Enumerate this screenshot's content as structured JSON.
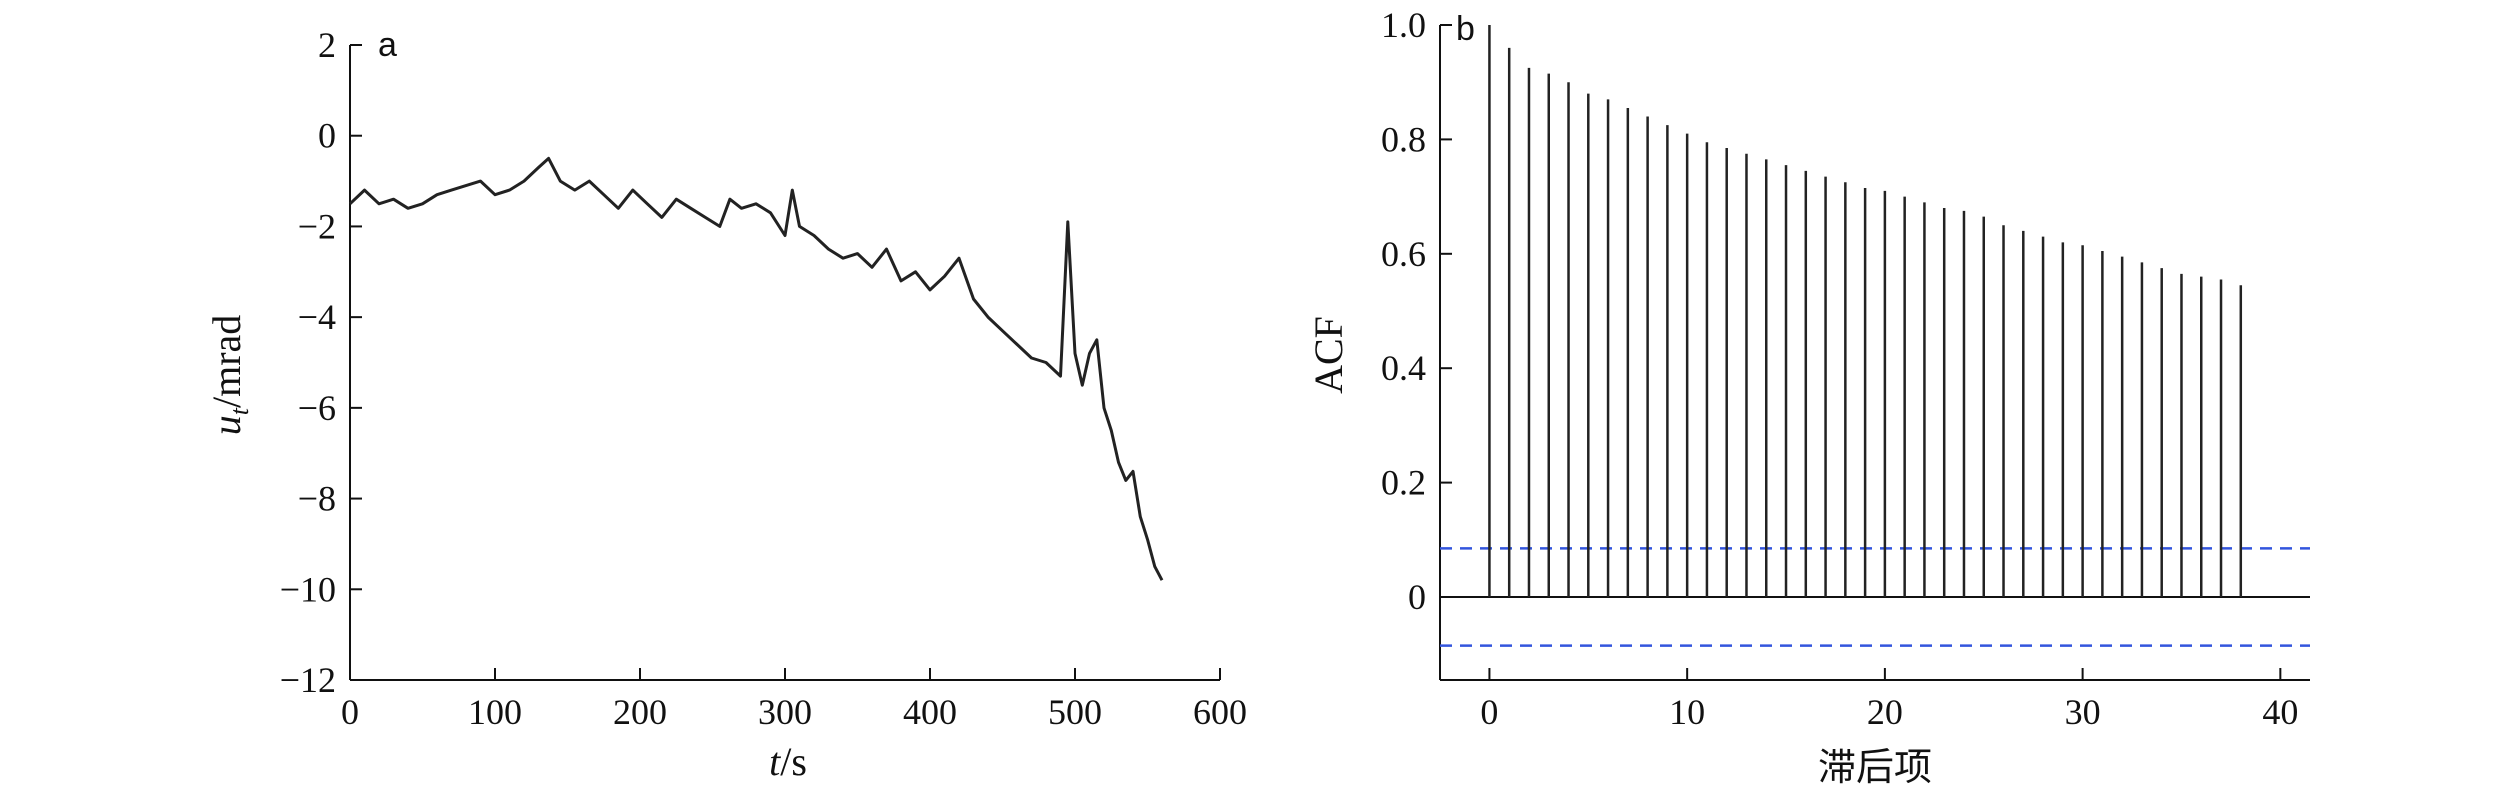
{
  "chart_data": [
    {
      "type": "line",
      "panel_label": "a",
      "xlabel": "t/s",
      "ylabel": "u_t/mrad",
      "xlim": [
        0,
        600
      ],
      "ylim": [
        -12,
        2
      ],
      "xticks": [
        0,
        100,
        200,
        300,
        400,
        500,
        600
      ],
      "yticks": [
        2,
        0,
        -2,
        -4,
        -6,
        -8,
        -10,
        -12
      ],
      "grid": false,
      "line_color": "#222222",
      "series": [
        {
          "x": [
            0,
            10,
            20,
            30,
            40,
            50,
            60,
            70,
            80,
            90,
            100,
            110,
            120,
            130,
            137,
            145,
            155,
            165,
            175,
            185,
            195,
            205,
            215,
            225,
            235,
            245,
            255,
            262,
            270,
            280,
            290,
            300,
            305,
            310,
            320,
            330,
            340,
            350,
            360,
            370,
            380,
            390,
            400,
            410,
            420,
            430,
            440,
            450,
            460,
            470,
            480,
            490,
            495,
            500,
            505,
            510,
            515,
            520,
            525,
            530,
            535,
            540,
            545,
            550,
            555,
            560
          ],
          "y": [
            -1.5,
            -1.2,
            -1.5,
            -1.4,
            -1.6,
            -1.5,
            -1.3,
            -1.2,
            -1.1,
            -1.0,
            -1.3,
            -1.2,
            -1.0,
            -0.7,
            -0.5,
            -1.0,
            -1.2,
            -1.0,
            -1.3,
            -1.6,
            -1.2,
            -1.5,
            -1.8,
            -1.4,
            -1.6,
            -1.8,
            -2.0,
            -1.4,
            -1.6,
            -1.5,
            -1.7,
            -2.2,
            -1.2,
            -2.0,
            -2.2,
            -2.5,
            -2.7,
            -2.6,
            -2.9,
            -2.5,
            -3.2,
            -3.0,
            -3.4,
            -3.1,
            -2.7,
            -3.6,
            -4.0,
            -4.3,
            -4.6,
            -4.9,
            -5.0,
            -5.3,
            -1.9,
            -4.8,
            -5.5,
            -4.8,
            -4.5,
            -6.0,
            -6.5,
            -7.2,
            -7.6,
            -7.4,
            -8.4,
            -8.9,
            -9.5,
            -9.8
          ]
        }
      ]
    },
    {
      "type": "bar",
      "panel_label": "b",
      "xlabel": "滞后项",
      "ylabel": "ACF",
      "xlim": [
        -2.5,
        41.5
      ],
      "ylim": [
        -0.15,
        1.0
      ],
      "xticks": [
        0,
        10,
        20,
        30,
        40
      ],
      "yticks": [
        1.0,
        0.8,
        0.6,
        0.4,
        0.2,
        0
      ],
      "grid": false,
      "stem_color": "#222222",
      "confidence_bound": 0.085,
      "confidence_color": "#3355dd",
      "lags": [
        0,
        1,
        2,
        3,
        4,
        5,
        6,
        7,
        8,
        9,
        10,
        11,
        12,
        13,
        14,
        15,
        16,
        17,
        18,
        19,
        20,
        21,
        22,
        23,
        24,
        25,
        26,
        27,
        28,
        29,
        30,
        31,
        32,
        33,
        34,
        35,
        36,
        37,
        38
      ],
      "values": [
        1.0,
        0.96,
        0.925,
        0.915,
        0.9,
        0.88,
        0.87,
        0.855,
        0.84,
        0.825,
        0.81,
        0.795,
        0.785,
        0.775,
        0.765,
        0.755,
        0.745,
        0.735,
        0.725,
        0.715,
        0.71,
        0.7,
        0.69,
        0.68,
        0.675,
        0.665,
        0.65,
        0.64,
        0.63,
        0.62,
        0.615,
        0.605,
        0.595,
        0.585,
        0.575,
        0.565,
        0.56,
        0.555,
        0.545
      ]
    }
  ]
}
